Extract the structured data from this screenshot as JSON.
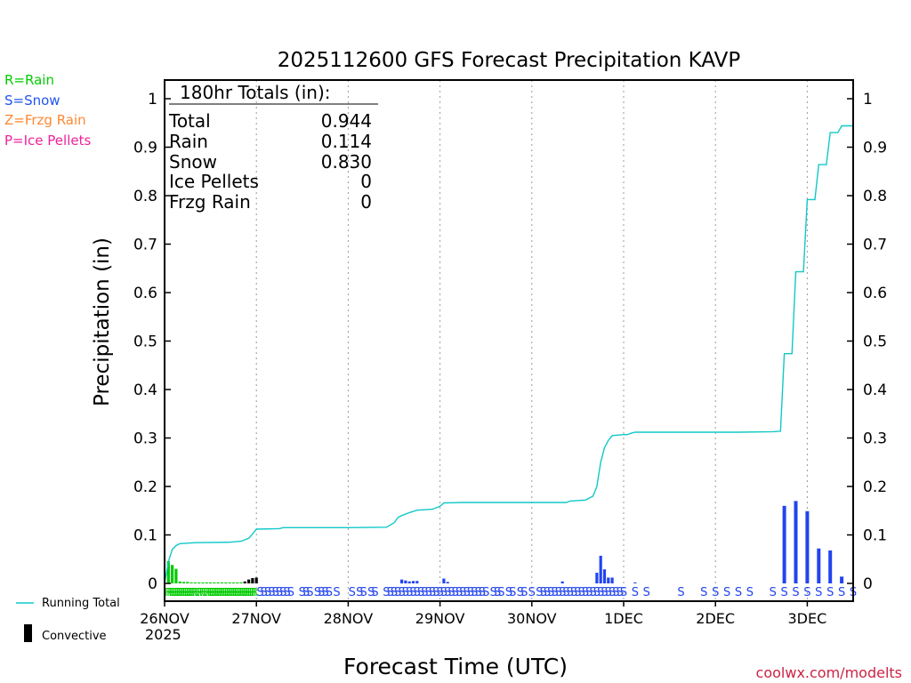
{
  "chart_data": {
    "type": "bar",
    "title": "2025112600 GFS Forecast Precipitation KAVP",
    "xlabel": "Forecast Time (UTC)",
    "ylabel": "Precipitation (in)",
    "xlim_hours": [
      0,
      180
    ],
    "ylim": [
      0,
      1.0
    ],
    "y_ticks": [
      0,
      0.1,
      0.2,
      0.3,
      0.4,
      0.5,
      0.6,
      0.7,
      0.8,
      0.9,
      1
    ],
    "y_tick_labels": [
      "0",
      "0.1",
      "0.2",
      "0.3",
      "0.4",
      "0.5",
      "0.6",
      "0.7",
      "0.8",
      "0.9",
      "1"
    ],
    "x_ticks": [
      {
        "hour": 0,
        "label": "26NOV",
        "sublabel": "2025"
      },
      {
        "hour": 24,
        "label": "27NOV"
      },
      {
        "hour": 48,
        "label": "28NOV"
      },
      {
        "hour": 72,
        "label": "29NOV"
      },
      {
        "hour": 96,
        "label": "30NOV"
      },
      {
        "hour": 120,
        "label": "1DEC"
      },
      {
        "hour": 144,
        "label": "2DEC"
      },
      {
        "hour": 168,
        "label": "3DEC"
      }
    ],
    "totals_box": {
      "header": "180hr Totals (in):",
      "rows": [
        {
          "label": "Total",
          "value": "0.944"
        },
        {
          "label": "Rain",
          "value": "0.114"
        },
        {
          "label": "Snow",
          "value": "0.830"
        },
        {
          "label": "Ice Pellets",
          "value": "0"
        },
        {
          "label": "Frzg Rain",
          "value": "0"
        }
      ]
    },
    "precip_type_legend": [
      {
        "text": "R=Rain",
        "color": "#00cc00"
      },
      {
        "text": "S=Snow",
        "color": "#2255ee"
      },
      {
        "text": "Z=Frzg Rain",
        "color": "#ff8833"
      },
      {
        "text": "P=Ice Pellets",
        "color": "#ee2299"
      }
    ],
    "bottom_legend": {
      "running_total": "Running Total",
      "convective": "Convective"
    },
    "credit": "coolwx.com/modelts",
    "colors": {
      "rain": "#00cc00",
      "snow": "#2244ee",
      "convective": "#000000",
      "running_total": "#11c8c8"
    },
    "series": [
      {
        "name": "Rain",
        "type": "bar",
        "bar_width_hours": 1,
        "points": [
          [
            1,
            0.046
          ],
          [
            2,
            0.038
          ],
          [
            3,
            0.03
          ],
          [
            4,
            0.004
          ],
          [
            5,
            0.003
          ],
          [
            6,
            0.003
          ],
          [
            7,
            0.002
          ],
          [
            8,
            0.002
          ],
          [
            9,
            0.002
          ],
          [
            10,
            0.002
          ],
          [
            11,
            0.002
          ],
          [
            12,
            0.002
          ],
          [
            13,
            0.002
          ],
          [
            14,
            0.002
          ],
          [
            15,
            0.002
          ],
          [
            16,
            0.002
          ],
          [
            17,
            0.002
          ],
          [
            18,
            0.002
          ],
          [
            19,
            0.002
          ],
          [
            20,
            0.002
          ],
          [
            21,
            0.002
          ],
          [
            22,
            0.003
          ],
          [
            23,
            0.004
          ]
        ]
      },
      {
        "name": "Snow",
        "type": "bar",
        "bar_width_hours": 1,
        "points": [
          [
            62,
            0.008
          ],
          [
            63,
            0.006
          ],
          [
            64,
            0.004
          ],
          [
            65,
            0.005
          ],
          [
            66,
            0.005
          ],
          [
            73,
            0.01
          ],
          [
            74,
            0.003
          ],
          [
            104,
            0.004
          ],
          [
            113,
            0.022
          ],
          [
            114,
            0.057
          ],
          [
            115,
            0.029
          ],
          [
            116,
            0.012
          ],
          [
            117,
            0.012
          ],
          [
            123,
            0.002
          ]
        ]
      },
      {
        "name": "Snow (6h)",
        "type": "bar",
        "bar_width_hours": 1,
        "points": [
          [
            162,
            0.16
          ],
          [
            165,
            0.17
          ],
          [
            168,
            0.149
          ],
          [
            171,
            0.072
          ],
          [
            174,
            0.068
          ],
          [
            177,
            0.014
          ]
        ]
      },
      {
        "name": "Convective",
        "type": "bar",
        "bar_width_hours": 1,
        "points": [
          [
            21,
            0.004
          ],
          [
            22,
            0.008
          ],
          [
            23,
            0.011
          ],
          [
            24,
            0.012
          ]
        ]
      },
      {
        "name": "Running Total",
        "type": "line",
        "points": [
          [
            0,
            0
          ],
          [
            1,
            0.045
          ],
          [
            2,
            0.07
          ],
          [
            3,
            0.078
          ],
          [
            4,
            0.082
          ],
          [
            8,
            0.084
          ],
          [
            17,
            0.085
          ],
          [
            20,
            0.087
          ],
          [
            22,
            0.093
          ],
          [
            23,
            0.102
          ],
          [
            24,
            0.112
          ],
          [
            30,
            0.113
          ],
          [
            31,
            0.115
          ],
          [
            48,
            0.115
          ],
          [
            58,
            0.116
          ],
          [
            60,
            0.125
          ],
          [
            61,
            0.136
          ],
          [
            62,
            0.14
          ],
          [
            64,
            0.146
          ],
          [
            66,
            0.151
          ],
          [
            70,
            0.153
          ],
          [
            72,
            0.159
          ],
          [
            73,
            0.166
          ],
          [
            78,
            0.167
          ],
          [
            90,
            0.167
          ],
          [
            105,
            0.167
          ],
          [
            106,
            0.17
          ],
          [
            110,
            0.172
          ],
          [
            112,
            0.18
          ],
          [
            113,
            0.2
          ],
          [
            114,
            0.25
          ],
          [
            115,
            0.28
          ],
          [
            116,
            0.295
          ],
          [
            117,
            0.305
          ],
          [
            120,
            0.307
          ],
          [
            121,
            0.307
          ],
          [
            122,
            0.31
          ],
          [
            123,
            0.312
          ],
          [
            150,
            0.312
          ],
          [
            159,
            0.313
          ],
          [
            161,
            0.314
          ],
          [
            162,
            0.474
          ],
          [
            164,
            0.474
          ],
          [
            165,
            0.643
          ],
          [
            167,
            0.643
          ],
          [
            168,
            0.792
          ],
          [
            170,
            0.792
          ],
          [
            171,
            0.864
          ],
          [
            173,
            0.864
          ],
          [
            174,
            0.93
          ],
          [
            176,
            0.93
          ],
          [
            177,
            0.944
          ],
          [
            180,
            0.944
          ]
        ]
      }
    ],
    "ptype_markers": [
      {
        "type": "R",
        "hours": [
          1,
          1.5,
          2,
          2.5,
          3,
          3.5,
          4,
          4.5,
          5,
          5.5,
          6,
          6.5,
          7,
          7.5,
          8,
          9,
          9.5,
          10,
          11,
          11.5,
          12,
          12.5,
          13,
          13.5,
          14,
          14.5,
          15,
          15.5,
          16,
          16.5,
          17,
          17.5,
          18,
          18.5,
          19,
          19.5,
          20,
          20.5,
          21,
          21.5,
          22,
          22.5,
          23,
          23.5
        ]
      },
      {
        "type": "S",
        "hours": [
          25,
          26,
          27,
          28,
          29,
          30,
          31,
          32,
          33,
          36,
          37,
          38,
          40,
          41,
          42,
          43,
          45,
          49,
          51,
          52,
          54,
          55,
          58,
          59,
          60,
          61,
          62,
          63,
          64,
          65,
          66,
          67,
          68,
          69,
          70,
          71,
          72,
          73,
          74,
          75,
          76,
          77,
          78,
          79,
          80,
          81,
          82,
          83,
          84,
          86,
          87,
          88,
          90,
          91,
          93,
          94,
          96,
          98,
          99,
          100,
          101,
          102,
          103,
          104,
          105,
          106,
          107,
          108,
          109,
          110,
          111,
          112,
          113,
          114,
          115,
          116,
          117,
          118,
          119,
          120,
          123,
          126,
          135,
          141,
          144,
          147,
          150,
          153,
          159,
          162,
          165,
          168,
          171,
          174,
          177,
          180
        ]
      }
    ]
  }
}
